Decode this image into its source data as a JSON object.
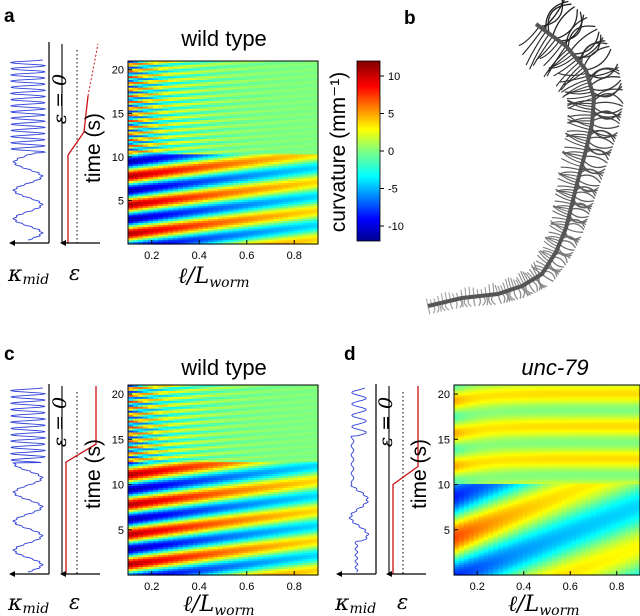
{
  "panels": [
    {
      "id": "a",
      "label": "a",
      "title": "wild type",
      "title_italic": false,
      "transition_time": 10.2
    },
    {
      "id": "b",
      "label": "b"
    },
    {
      "id": "c",
      "label": "c",
      "title": "wild type",
      "title_italic": false,
      "transition_time": 12.5
    },
    {
      "id": "d",
      "label": "d",
      "title": "unc-79",
      "title_italic": true,
      "transition_time": 10.0
    }
  ],
  "labels": {
    "epsilon_zero": "ε = 0",
    "kappa_mid": "κ",
    "kappa_mid_sub": "mid",
    "epsilon": "ε",
    "time_axis": "time (s)",
    "x_axis_main": "ℓ/L",
    "x_axis_sub": "worm",
    "colorbar_label": "curvature  (mm⁻¹)"
  },
  "colors": {
    "kappa_trace": "#2f3fd8",
    "epsilon_line": "#cc1111"
  },
  "chart_data": [
    {
      "type": "heatmap",
      "panel": "a",
      "title": "wild type",
      "xlabel": "ℓ/L_worm",
      "ylabel": "time (s)",
      "xlim": [
        0.1,
        0.9
      ],
      "ylim": [
        0,
        21
      ],
      "xticks": [
        "0.2",
        "0.4",
        "0.6",
        "0.8"
      ],
      "yticks": [
        "5",
        "10",
        "15",
        "20"
      ],
      "colorbar": {
        "label": "curvature (mm⁻¹)",
        "range": [
          -12,
          12
        ],
        "ticks": [
          "10",
          "5",
          "0",
          "-5",
          "-10"
        ]
      }
    },
    {
      "type": "heatmap",
      "panel": "c",
      "title": "wild type",
      "xlabel": "ℓ/L_worm",
      "ylabel": "time (s)",
      "xlim": [
        0.1,
        0.9
      ],
      "ylim": [
        0,
        21
      ],
      "xticks": [
        "0.2",
        "0.4",
        "0.6",
        "0.8"
      ],
      "yticks": [
        "5",
        "10",
        "15",
        "20"
      ]
    },
    {
      "type": "heatmap",
      "panel": "d",
      "title": "unc-79",
      "xlabel": "ℓ/L_worm",
      "ylabel": "time (s)",
      "xlim": [
        0.1,
        0.9
      ],
      "ylim": [
        0,
        21
      ],
      "xticks": [
        "0.2",
        "0.4",
        "0.6",
        "0.8"
      ],
      "yticks": [
        "5",
        "10",
        "15",
        "20"
      ]
    }
  ]
}
